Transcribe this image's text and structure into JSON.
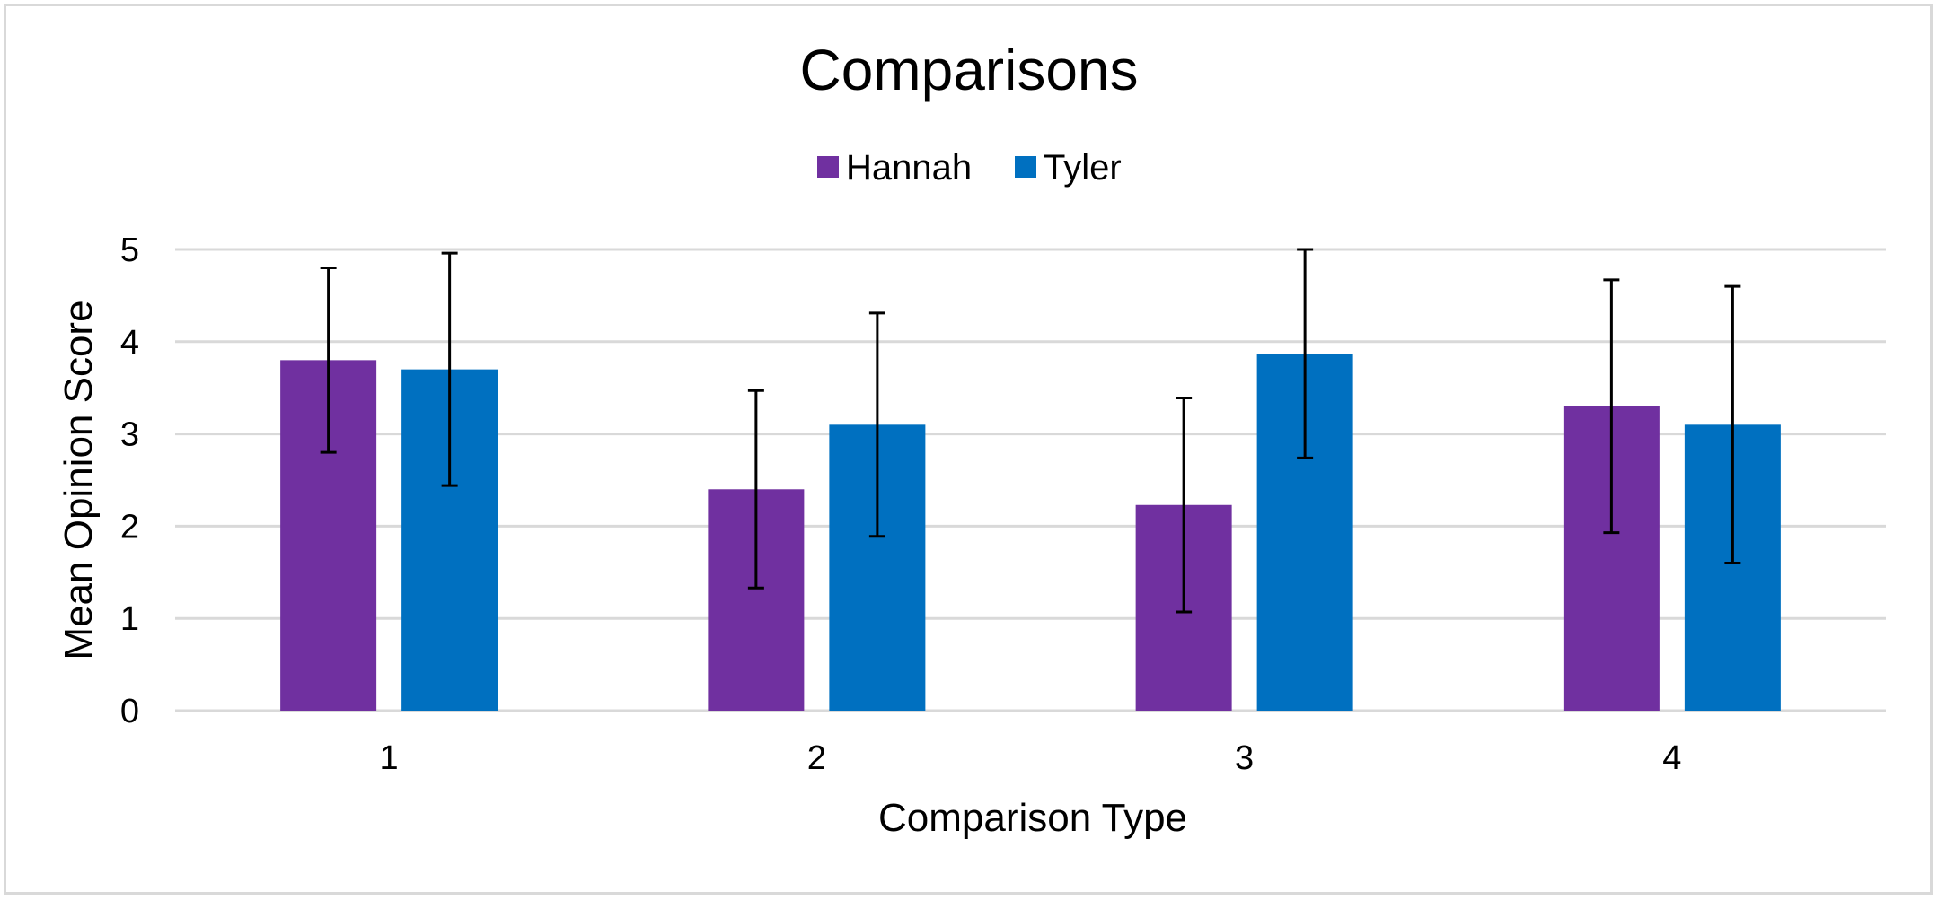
{
  "chart_data": {
    "type": "bar",
    "title": "Comparisons",
    "xlabel": "Comparison Type",
    "ylabel": "Mean Opinion Score",
    "categories": [
      "1",
      "2",
      "3",
      "4"
    ],
    "ylim": [
      0,
      5
    ],
    "yticks": [
      "0",
      "1",
      "2",
      "3",
      "4",
      "5"
    ],
    "grid": true,
    "legend_position": "top-center",
    "series": [
      {
        "name": "Hannah",
        "color": "#7030a0",
        "values": [
          3.8,
          2.4,
          2.23,
          3.3
        ],
        "error": [
          1.0,
          1.07,
          1.16,
          1.37
        ]
      },
      {
        "name": "Tyler",
        "color": "#0070c0",
        "values": [
          3.7,
          3.1,
          3.87,
          3.1
        ],
        "error": [
          1.26,
          1.21,
          1.13,
          1.5
        ]
      }
    ]
  }
}
